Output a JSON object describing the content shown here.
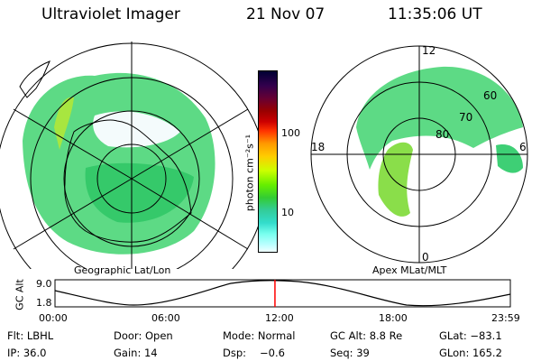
{
  "header": {
    "instrument": "Ultraviolet Imager",
    "date": "21 Nov 07",
    "time": "11:35:06 UT"
  },
  "left_panel": {
    "caption": "Geographic Lat/Lon"
  },
  "right_panel": {
    "caption": "Apex MLat/MLT",
    "mlt_labels": {
      "top": "12",
      "left": "18",
      "right": "6",
      "bottom": "0"
    },
    "mlat_labels": [
      "60",
      "70",
      "80"
    ]
  },
  "colorbar": {
    "unit_label": "photon cm⁻²s⁻¹",
    "ticks": [
      "100",
      "10"
    ],
    "colors": [
      "#000033",
      "#33004d",
      "#660033",
      "#990000",
      "#cc0000",
      "#ff3300",
      "#ff9900",
      "#ffcc00",
      "#ccff00",
      "#66ee00",
      "#33cc33",
      "#33cc99",
      "#33ddcc",
      "#77ffee",
      "#bbffff",
      "#f0ffff"
    ]
  },
  "orbit_plot": {
    "y_label": "GC Alt",
    "y_ticks": [
      "9.0",
      "1.8"
    ],
    "x_ticks": [
      "00:00",
      "06:00",
      "12:00",
      "18:00",
      "23:59"
    ],
    "current_time_marker": "11:35:06",
    "marker_color": "#ff0000"
  },
  "status": {
    "filter": "Flt: LBHL",
    "door": "Door: Open",
    "mode": "Mode: Normal",
    "gc_alt": "GC Alt: 8.8 Re",
    "glat": "GLat: −83.1",
    "ip": "IP: 36.0",
    "gain": "Gain: 14",
    "dsp_label": "Dsp:",
    "dsp_value": "−0.6",
    "seq": "Seq: 39",
    "glon": "GLon: 165.2"
  }
}
